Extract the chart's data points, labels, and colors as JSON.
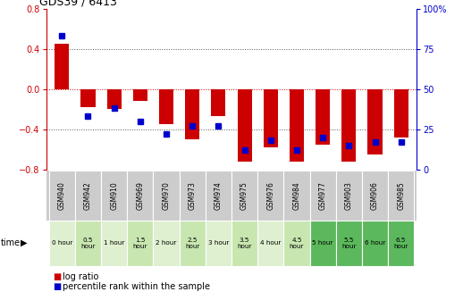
{
  "title": "GDS39 / 6413",
  "samples": [
    "GSM940",
    "GSM942",
    "GSM910",
    "GSM969",
    "GSM970",
    "GSM973",
    "GSM974",
    "GSM975",
    "GSM976",
    "GSM984",
    "GSM977",
    "GSM903",
    "GSM906",
    "GSM985"
  ],
  "time_labels": [
    "0 hour",
    "0.5\nhour",
    "1 hour",
    "1.5\nhour",
    "2 hour",
    "2.5\nhour",
    "3 hour",
    "3.5\nhour",
    "4 hour",
    "4.5\nhour",
    "5 hour",
    "5.5\nhour",
    "6 hour",
    "6.5\nhour"
  ],
  "log_ratio": [
    0.45,
    -0.18,
    -0.2,
    -0.12,
    -0.35,
    -0.5,
    -0.27,
    -0.72,
    -0.58,
    -0.72,
    -0.55,
    -0.72,
    -0.65,
    -0.48
  ],
  "percentile": [
    83,
    33,
    38,
    30,
    22,
    27,
    27,
    12,
    18,
    12,
    20,
    15,
    17,
    17
  ],
  "ylim_left": [
    -0.8,
    0.8
  ],
  "ylim_right": [
    0,
    100
  ],
  "bar_color": "#cc0000",
  "dot_color": "#0000cc",
  "grid_color": "#333333",
  "bg_color": "#ffffff",
  "plot_bg": "#ffffff",
  "time_colors_light": "#c8e8b0",
  "time_colors_dark": "#5cb85c",
  "time_colors_medium": "#a8d888",
  "sample_row_color": "#cccccc",
  "legend_log_ratio": "log ratio",
  "legend_pct": "percentile rank within the sample",
  "time_arrow_label": "time",
  "left_axis_color": "#cc0000",
  "right_axis_color": "#0000cc"
}
